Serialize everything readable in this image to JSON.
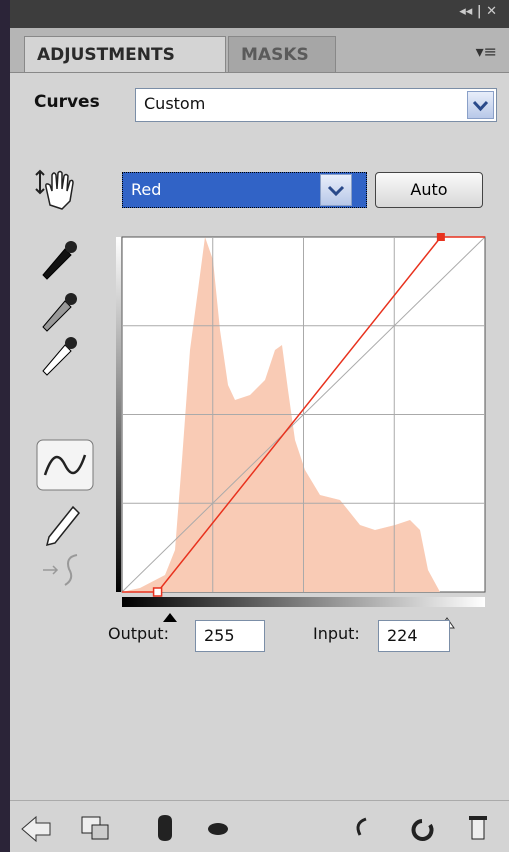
{
  "panel": {
    "tabs": [
      "ADJUSTMENTS",
      "MASKS"
    ],
    "adjustment_label": "Curves",
    "preset": "Custom",
    "channel": "Red",
    "auto_button": "Auto",
    "output_label": "Output:",
    "output_value": "255",
    "input_label": "Input:",
    "input_value": "224",
    "curve_points": [
      {
        "input": 25,
        "output": 0
      }
    ]
  }
}
